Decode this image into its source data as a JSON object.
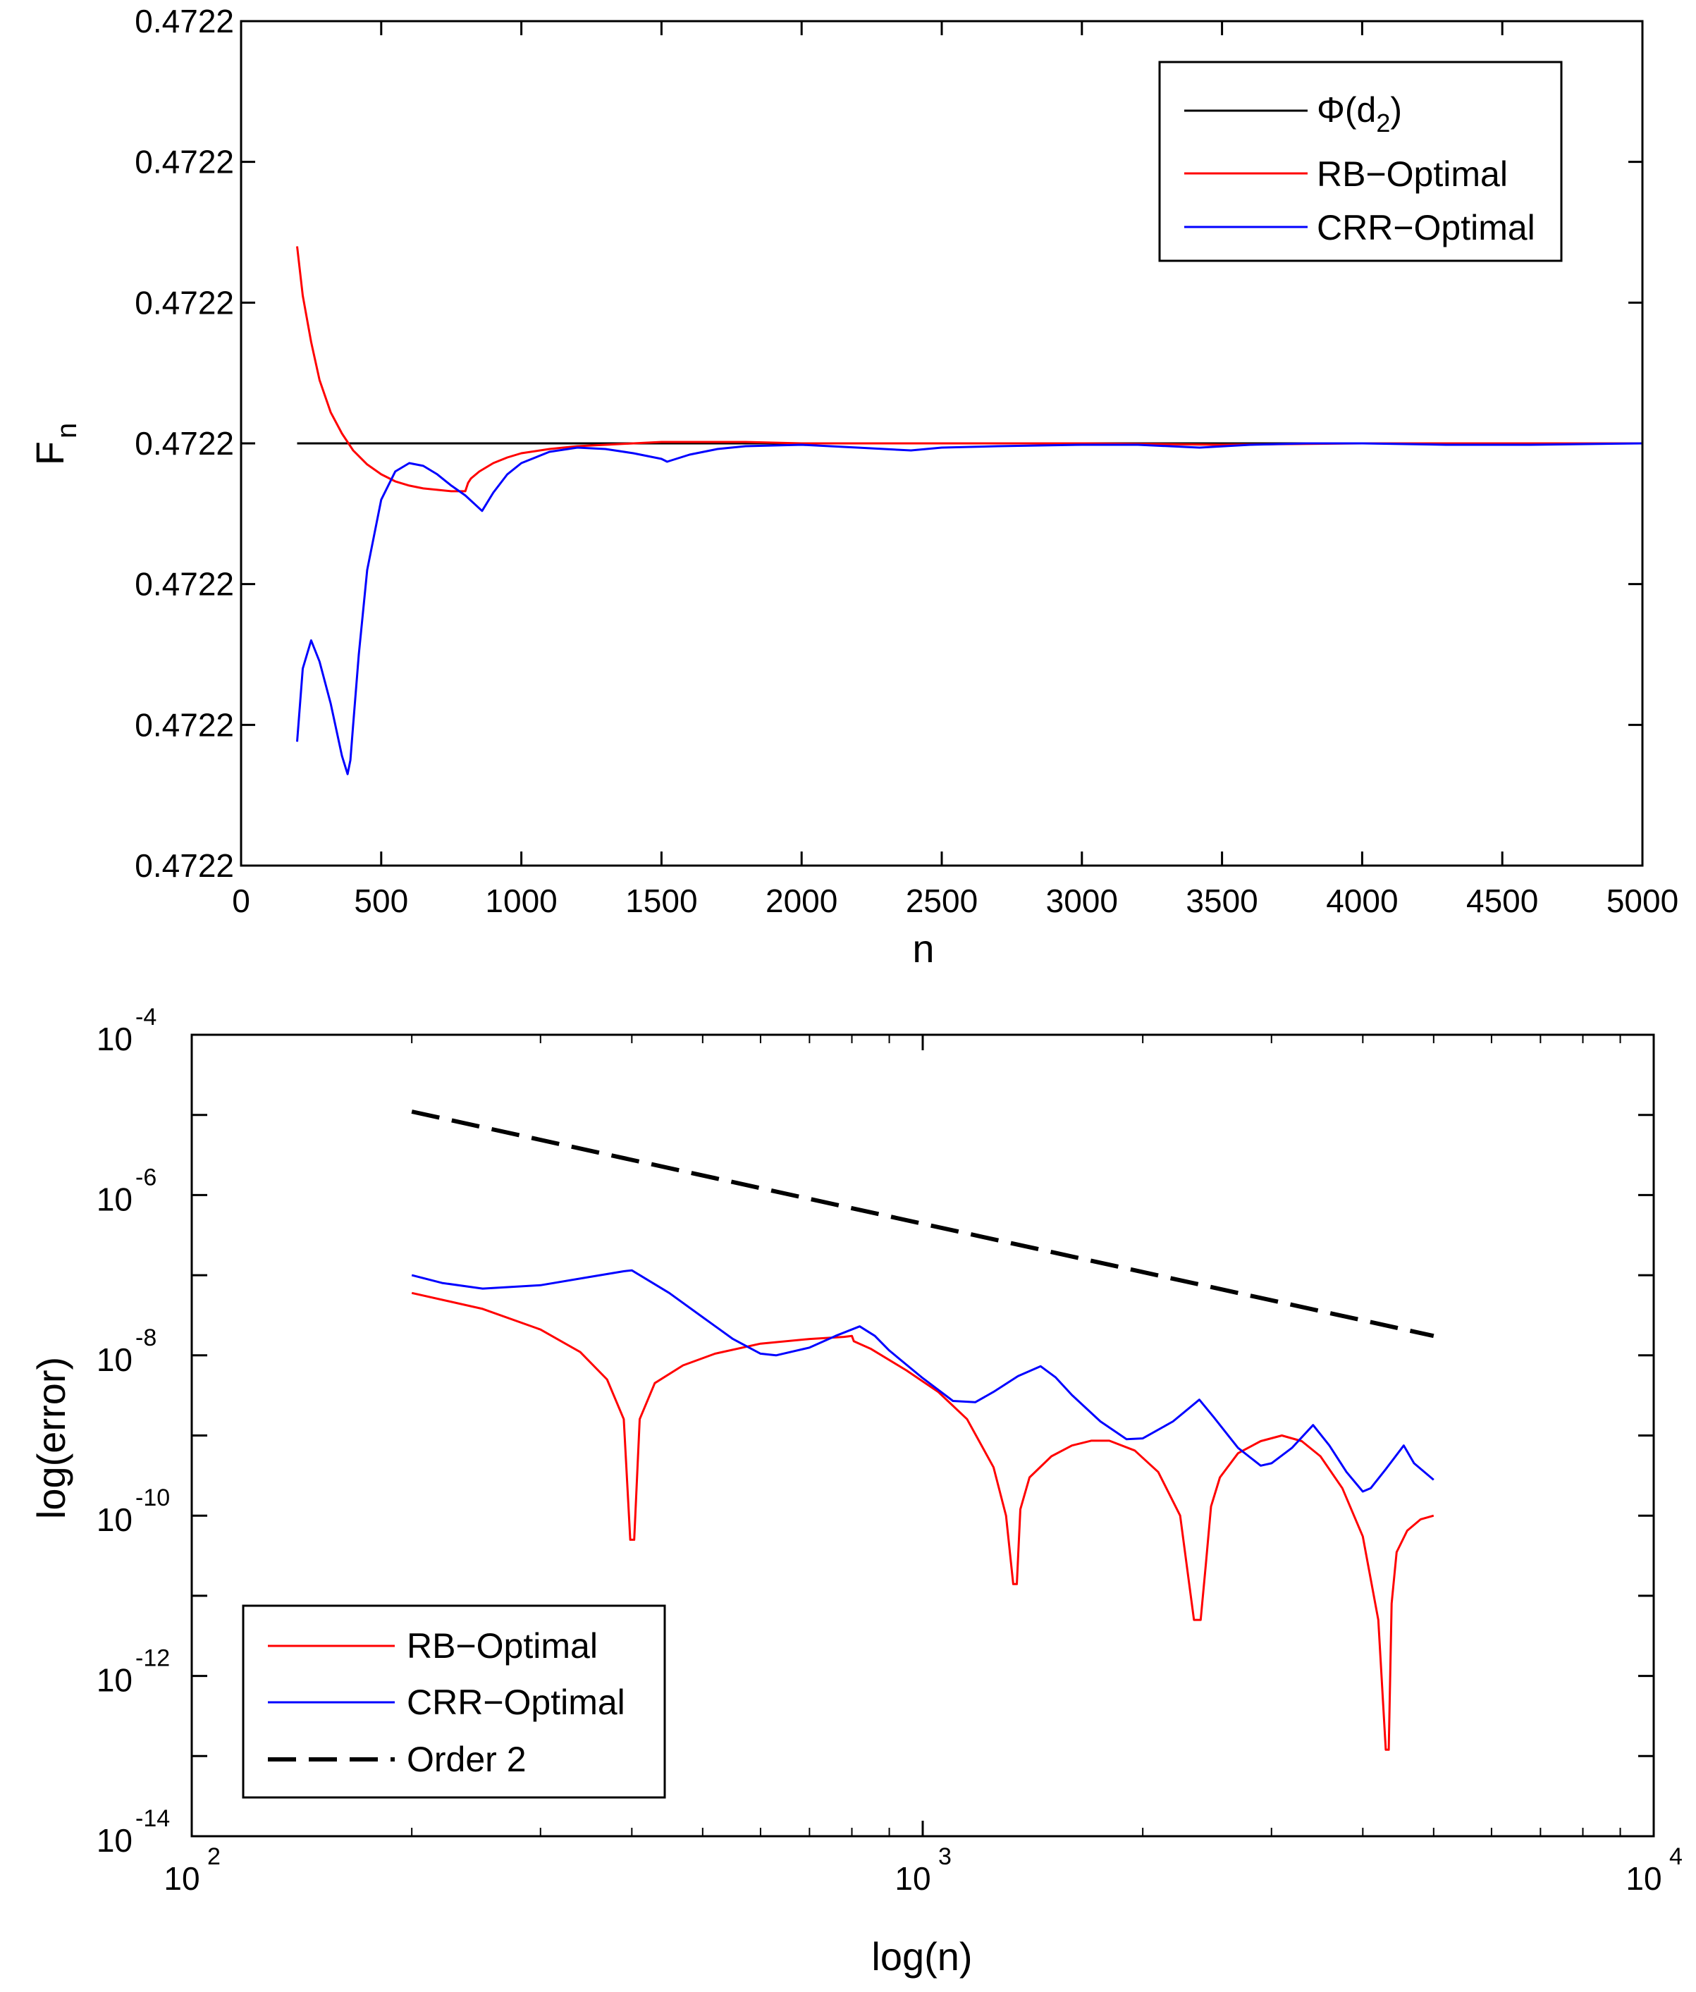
{
  "chart_data": [
    {
      "type": "line",
      "xlabel": "n",
      "ylabel": "F",
      "ylabel_subscript": "n",
      "xlim": [
        0,
        5000
      ],
      "ylim": [
        0,
        6
      ],
      "xticks": [
        0,
        500,
        1000,
        1500,
        2000,
        2500,
        3000,
        3500,
        4000,
        4500,
        5000
      ],
      "ytick_labels": [
        "0.4722",
        "0.4722",
        "0.4722",
        "0.4722",
        "0.4722",
        "0.4722"
      ],
      "legend_position": "top-right",
      "series": [
        {
          "name": "Φ(d₂)",
          "legend_main": "Φ(d",
          "legend_sub": "2",
          "legend_close": ")",
          "color": "#000000",
          "x": [
            200,
            5000
          ],
          "y": [
            3.0,
            3.0
          ]
        },
        {
          "name": "RB−Optimal",
          "color": "#ff0000",
          "x": [
            200,
            220,
            250,
            280,
            320,
            360,
            400,
            450,
            500,
            550,
            600,
            650,
            700,
            750,
            800,
            810,
            820,
            850,
            900,
            950,
            1000,
            1100,
            1200,
            1300,
            1400,
            1500,
            1600,
            1700,
            1800,
            2000,
            2200,
            2500,
            3000,
            3500,
            4000,
            4500,
            5000
          ],
          "y": [
            4.4,
            4.05,
            3.72,
            3.45,
            3.22,
            3.07,
            2.95,
            2.85,
            2.78,
            2.73,
            2.7,
            2.68,
            2.67,
            2.66,
            2.66,
            2.72,
            2.75,
            2.8,
            2.86,
            2.9,
            2.93,
            2.96,
            2.98,
            2.99,
            3.0,
            3.01,
            3.01,
            3.01,
            3.01,
            3.0,
            3.0,
            3.0,
            3.0,
            2.99,
            3.0,
            3.0,
            3.0
          ]
        },
        {
          "name": "CRR−Optimal",
          "color": "#0000ff",
          "x": [
            200,
            220,
            250,
            280,
            320,
            360,
            380,
            390,
            400,
            420,
            450,
            500,
            550,
            600,
            650,
            700,
            750,
            800,
            860,
            900,
            950,
            1000,
            1100,
            1200,
            1300,
            1400,
            1500,
            1520,
            1600,
            1700,
            1800,
            2000,
            2200,
            2390,
            2500,
            2700,
            3000,
            3200,
            3420,
            3600,
            3800,
            4000,
            4300,
            4600,
            5000
          ],
          "y": [
            0.88,
            1.4,
            1.6,
            1.45,
            1.15,
            0.78,
            0.65,
            0.75,
            1.0,
            1.5,
            2.1,
            2.6,
            2.8,
            2.86,
            2.84,
            2.78,
            2.7,
            2.63,
            2.52,
            2.65,
            2.78,
            2.86,
            2.94,
            2.97,
            2.96,
            2.93,
            2.89,
            2.87,
            2.92,
            2.96,
            2.98,
            2.99,
            2.97,
            2.95,
            2.97,
            2.98,
            2.99,
            2.99,
            2.97,
            2.99,
            3.0,
            3.0,
            2.99,
            2.99,
            3.0
          ]
        }
      ]
    },
    {
      "type": "line",
      "xscale": "log",
      "yscale": "log",
      "xlabel": "log(n)",
      "ylabel": "log(error)",
      "xlim_exponents": [
        2,
        4
      ],
      "ylim_exponents": [
        -14,
        -4
      ],
      "xtick_labels": [
        {
          "base": "10",
          "exp": "2"
        },
        {
          "base": "10",
          "exp": "3"
        },
        {
          "base": "10",
          "exp": "4"
        }
      ],
      "ytick_labels": [
        {
          "base": "10",
          "exp": "-4"
        },
        {
          "base": "10",
          "exp": "-6"
        },
        {
          "base": "10",
          "exp": "-8"
        },
        {
          "base": "10",
          "exp": "-10"
        },
        {
          "base": "10",
          "exp": "-12"
        },
        {
          "base": "10",
          "exp": "-14"
        }
      ],
      "legend_position": "bottom-left",
      "series": [
        {
          "name": "RB−Optimal",
          "color": "#ff0000",
          "dashed": false,
          "x": [
            200,
            250,
            300,
            340,
            370,
            390,
            398,
            403,
            410,
            430,
            470,
            520,
            600,
            700,
            780,
            800,
            805,
            850,
            950,
            1050,
            1150,
            1250,
            1300,
            1330,
            1345,
            1360,
            1400,
            1500,
            1600,
            1700,
            1800,
            1950,
            2100,
            2250,
            2350,
            2400,
            2440,
            2480,
            2550,
            2700,
            2900,
            3100,
            3300,
            3500,
            3750,
            4000,
            4200,
            4300,
            4340,
            4380,
            4450,
            4600,
            4800,
            5000
          ],
          "y": [
            6e-08,
            3.8e-08,
            2.1e-08,
            1.1e-08,
            5e-09,
            1.6e-09,
            5e-11,
            5e-11,
            1.6e-09,
            4.5e-09,
            7.5e-09,
            1.05e-08,
            1.4e-08,
            1.6e-08,
            1.7e-08,
            1.75e-08,
            1.5e-08,
            1.2e-08,
            6.5e-09,
            3.5e-09,
            1.6e-09,
            4e-10,
            1e-10,
            1.4e-11,
            1.4e-11,
            1.2e-10,
            3e-10,
            5.5e-10,
            7.5e-10,
            8.6e-10,
            8.6e-10,
            6.5e-10,
            3.5e-10,
            1e-10,
            5e-12,
            5e-12,
            2.5e-11,
            1.3e-10,
            3e-10,
            6e-10,
            8.5e-10,
            1e-09,
            8.5e-10,
            5.5e-10,
            2.2e-10,
            5.5e-11,
            5e-12,
            1.2e-13,
            1.2e-13,
            8e-12,
            3.5e-11,
            6.5e-11,
            9e-11,
            1e-10
          ]
        },
        {
          "name": "CRR−Optimal",
          "color": "#0000ff",
          "dashed": false,
          "x": [
            200,
            220,
            250,
            300,
            350,
            390,
            400,
            450,
            500,
            550,
            600,
            630,
            700,
            760,
            820,
            860,
            900,
            1000,
            1100,
            1180,
            1250,
            1350,
            1450,
            1520,
            1600,
            1750,
            1900,
            2000,
            2200,
            2390,
            2500,
            2700,
            2900,
            3000,
            3200,
            3420,
            3600,
            3800,
            4000,
            4100,
            4300,
            4550,
            4700,
            5000
          ],
          "y": [
            1e-07,
            8e-08,
            6.8e-08,
            7.5e-08,
            9.5e-08,
            1.12e-07,
            1.15e-07,
            6e-08,
            3e-08,
            1.6e-08,
            1.05e-08,
            1e-08,
            1.25e-08,
            1.75e-08,
            2.3e-08,
            1.75e-08,
            1.15e-08,
            5.2e-09,
            2.7e-09,
            2.6e-09,
            3.5e-09,
            5.5e-09,
            7.3e-09,
            5.3e-09,
            3.2e-09,
            1.5e-09,
            9e-10,
            9.2e-10,
            1.5e-09,
            2.8e-09,
            1.7e-09,
            7e-10,
            4.2e-10,
            4.5e-10,
            7e-10,
            1.35e-09,
            7.5e-10,
            3.5e-10,
            2e-10,
            2.2e-10,
            3.8e-10,
            7.5e-10,
            4.5e-10,
            2.8e-10
          ]
        },
        {
          "name": "Order 2",
          "color": "#000000",
          "dashed": true,
          "x": [
            200,
            5000
          ],
          "y": [
            1.1e-05,
            1.75e-08
          ]
        }
      ]
    }
  ]
}
